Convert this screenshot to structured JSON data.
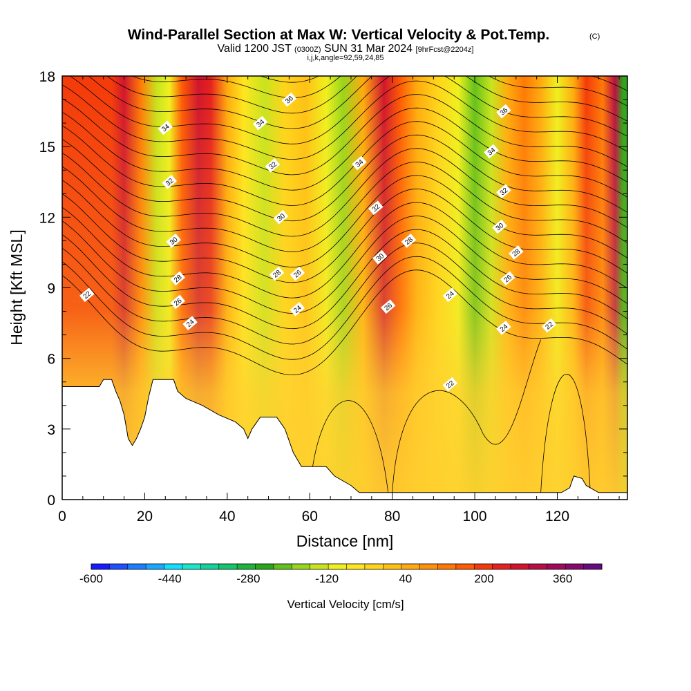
{
  "chart_data": {
    "type": "heatmap",
    "title": "Wind-Parallel Section at Max W: Vertical Velocity & Pot.Temp.",
    "title_mark": "(C)",
    "subtitle_pre": "Valid 1200 JST ",
    "subtitle_utc": "(0300Z)",
    "subtitle_date": " SUN 31 Mar 2024 ",
    "subtitle_fcst": "[9hrFcst@2204z]",
    "subtitle2": "i,j,k,angle=92,59,24,85",
    "xlabel": "Distance [nm]",
    "ylabel": "Height [Kft MSL]",
    "xlim": [
      0,
      137
    ],
    "ylim": [
      0,
      18
    ],
    "x_ticks": [
      "0",
      "20",
      "40",
      "60",
      "80",
      "100",
      "120"
    ],
    "y_ticks": [
      "0",
      "3",
      "6",
      "9",
      "12",
      "15",
      "18"
    ],
    "colorbar": {
      "title": "Vertical Velocity [cm/s]",
      "range": [
        -600,
        440
      ],
      "tick_labels": [
        "-600",
        "-440",
        "-280",
        "-120",
        "40",
        "200",
        "360"
      ],
      "colors": [
        "#1a1aff",
        "#1f4fff",
        "#1e7cff",
        "#1aa8ff",
        "#10dfff",
        "#1ae6c8",
        "#12d39a",
        "#14c46e",
        "#1cb43c",
        "#2aa61a",
        "#62c11a",
        "#98d51c",
        "#c8e41e",
        "#f0f01e",
        "#ffe61e",
        "#ffd41a",
        "#ffc014",
        "#ffaa0e",
        "#ff9208",
        "#ff7806",
        "#ff5a04",
        "#f43a0a",
        "#e6201e",
        "#d0142e",
        "#b80e44",
        "#a00a5a",
        "#860a6e",
        "#680a80"
      ]
    },
    "updraft_bands": [
      {
        "x": 12,
        "w": 180
      },
      {
        "x": 15,
        "w": 260
      },
      {
        "x": 19,
        "w": 120
      },
      {
        "x": 23,
        "w": -140
      },
      {
        "x": 26,
        "w": -90
      },
      {
        "x": 29,
        "w": 160
      },
      {
        "x": 33,
        "w": 280
      },
      {
        "x": 36,
        "w": 240
      },
      {
        "x": 40,
        "w": 40
      },
      {
        "x": 44,
        "w": -60
      },
      {
        "x": 49,
        "w": -120
      },
      {
        "x": 54,
        "w": -40
      },
      {
        "x": 59,
        "w": 20
      },
      {
        "x": 64,
        "w": -90
      },
      {
        "x": 68,
        "w": -160
      },
      {
        "x": 73,
        "w": 60
      },
      {
        "x": 78,
        "w": 260
      },
      {
        "x": 82,
        "w": 160
      },
      {
        "x": 86,
        "w": 40
      },
      {
        "x": 91,
        "w": -40
      },
      {
        "x": 96,
        "w": -100
      },
      {
        "x": 100,
        "w": -220
      },
      {
        "x": 104,
        "w": -150
      },
      {
        "x": 108,
        "w": 40
      },
      {
        "x": 112,
        "w": 140
      },
      {
        "x": 116,
        "w": 60
      },
      {
        "x": 120,
        "w": -90
      },
      {
        "x": 124,
        "w": 60
      },
      {
        "x": 127,
        "w": 200
      },
      {
        "x": 131,
        "w": 120
      },
      {
        "x": 134,
        "w": 300
      },
      {
        "x": 136,
        "w": -260
      }
    ],
    "terrain": [
      [
        0,
        4.8
      ],
      [
        9,
        4.8
      ],
      [
        10,
        5.1
      ],
      [
        12,
        5.1
      ],
      [
        13,
        4.6
      ],
      [
        14,
        4.2
      ],
      [
        15,
        3.6
      ],
      [
        16,
        2.6
      ],
      [
        17,
        2.3
      ],
      [
        18,
        2.6
      ],
      [
        19,
        3.0
      ],
      [
        20,
        3.5
      ],
      [
        21,
        4.4
      ],
      [
        22,
        5.1
      ],
      [
        27,
        5.1
      ],
      [
        28,
        4.6
      ],
      [
        30,
        4.3
      ],
      [
        34,
        4.0
      ],
      [
        38,
        3.6
      ],
      [
        42,
        3.3
      ],
      [
        44,
        3.0
      ],
      [
        45,
        2.6
      ],
      [
        46,
        3.0
      ],
      [
        48,
        3.5
      ],
      [
        52,
        3.5
      ],
      [
        54,
        3.0
      ],
      [
        56,
        2.0
      ],
      [
        58,
        1.4
      ],
      [
        64,
        1.4
      ],
      [
        66,
        1.0
      ],
      [
        70,
        0.6
      ],
      [
        72,
        0.3
      ],
      [
        121,
        0.3
      ],
      [
        123,
        0.5
      ],
      [
        124,
        1.0
      ],
      [
        126,
        0.9
      ],
      [
        127,
        0.6
      ],
      [
        130,
        0.3
      ],
      [
        137,
        0.3
      ]
    ],
    "contour_labels": [
      {
        "text": "36",
        "x": 55,
        "y": 17.0
      },
      {
        "text": "36",
        "x": 107,
        "y": 16.5
      },
      {
        "text": "34",
        "x": 25,
        "y": 15.8
      },
      {
        "text": "34",
        "x": 48,
        "y": 16.0
      },
      {
        "text": "34",
        "x": 72,
        "y": 14.3
      },
      {
        "text": "34",
        "x": 104,
        "y": 14.8
      },
      {
        "text": "32",
        "x": 26,
        "y": 13.5
      },
      {
        "text": "32",
        "x": 51,
        "y": 14.2
      },
      {
        "text": "32",
        "x": 76,
        "y": 12.4
      },
      {
        "text": "32",
        "x": 107,
        "y": 13.1
      },
      {
        "text": "30",
        "x": 27,
        "y": 11.0
      },
      {
        "text": "30",
        "x": 53,
        "y": 12.0
      },
      {
        "text": "30",
        "x": 77,
        "y": 10.3
      },
      {
        "text": "30",
        "x": 106,
        "y": 11.6
      },
      {
        "text": "28",
        "x": 28,
        "y": 9.4
      },
      {
        "text": "28",
        "x": 52,
        "y": 9.6
      },
      {
        "text": "28",
        "x": 84,
        "y": 11.0
      },
      {
        "text": "28",
        "x": 110,
        "y": 10.5
      },
      {
        "text": "26",
        "x": 28,
        "y": 8.4
      },
      {
        "text": "26",
        "x": 57,
        "y": 9.6
      },
      {
        "text": "26",
        "x": 79,
        "y": 8.2
      },
      {
        "text": "26",
        "x": 108,
        "y": 9.4
      },
      {
        "text": "24",
        "x": 31,
        "y": 7.5
      },
      {
        "text": "24",
        "x": 57,
        "y": 8.1
      },
      {
        "text": "24",
        "x": 94,
        "y": 8.7
      },
      {
        "text": "24",
        "x": 107,
        "y": 7.3
      },
      {
        "text": "22",
        "x": 6,
        "y": 8.7
      },
      {
        "text": "22",
        "x": 94,
        "y": 4.9
      },
      {
        "text": "22",
        "x": 118,
        "y": 7.4
      }
    ]
  }
}
